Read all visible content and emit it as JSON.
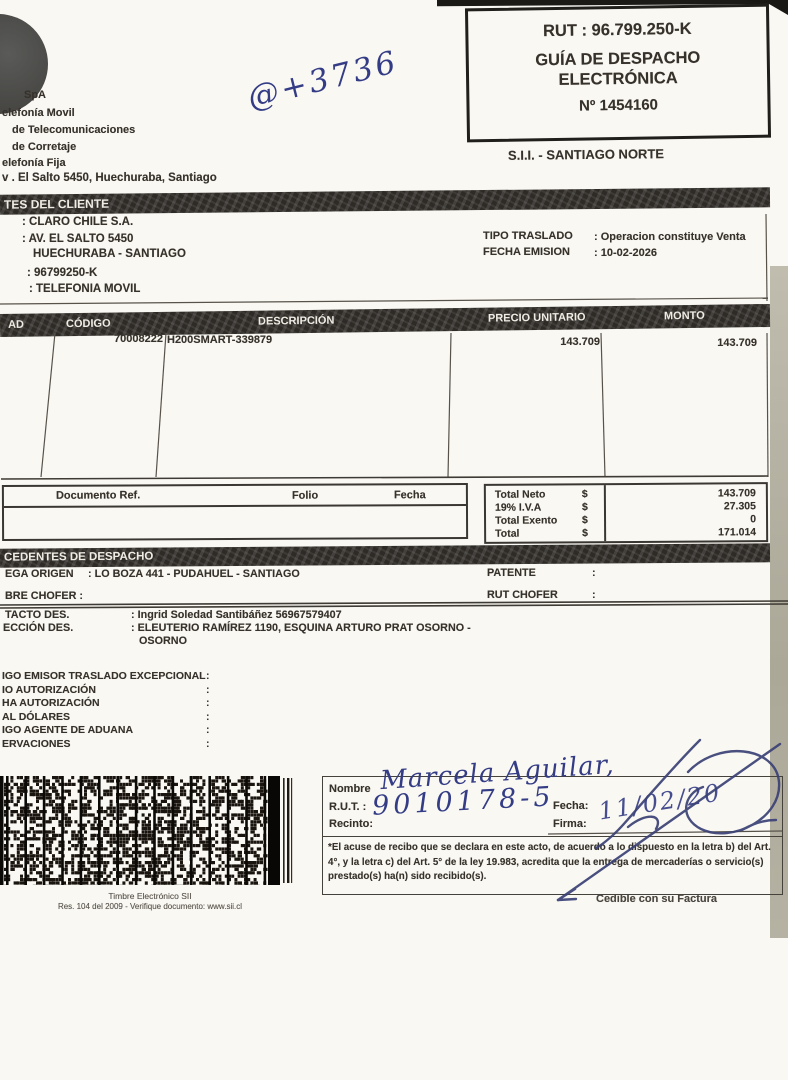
{
  "supplier": {
    "line1": "SpA",
    "line2": "elefonía Movil",
    "line3": "de Telecomunicaciones",
    "line4": "de Corretaje",
    "line5": "elefonía Fija",
    "line6": "v . El Salto 5450, Huechuraba, Santiago"
  },
  "annotations": {
    "top_note": "@+3736",
    "nombre": "Marcela Aguilar,",
    "rut": "9010178-5",
    "fecha": "11/02/20"
  },
  "rut_box": {
    "rut": "RUT : 96.799.250-K",
    "title_line1": "GUÍA DE DESPACHO",
    "title_line2": "ELECTRÓNICA",
    "folio": "Nº 1454160",
    "office": "S.I.I. - SANTIAGO NORTE"
  },
  "client": {
    "section_title": "TES DEL CLIENTE",
    "name": ": CLARO CHILE S.A.",
    "address1": ": AV. EL SALTO 5450",
    "address2": "HUECHURABA - SANTIAGO",
    "rut": ": 96799250-K",
    "giro": ": TELEFONIA MOVIL",
    "tipo_traslado_label": "TIPO TRASLADO",
    "tipo_traslado": ": Operacion constituye Venta",
    "fecha_emision_label": "FECHA EMISION",
    "fecha_emision": ": 10-02-2026"
  },
  "items": {
    "col_cantidad": "AD",
    "col_codigo": "CÓDIGO",
    "col_descripcion": "DESCRIPCIÓN",
    "col_precio": "PRECIO UNITARIO",
    "col_monto": "MONTO",
    "rows": [
      {
        "codigo": "70008222",
        "descripcion": "H200SMART-339879",
        "precio": "143.709",
        "monto": "143.709"
      }
    ]
  },
  "referencias": {
    "col_doc": "Documento Ref.",
    "col_folio": "Folio",
    "col_fecha": "Fecha"
  },
  "totales": {
    "neto_label": "Total Neto",
    "iva_label": "19% I.V.A",
    "exento_label": "Total Exento",
    "total_label": "Total",
    "currency": "$",
    "neto": "143.709",
    "iva": "27.305",
    "exento": "0",
    "total": "171.014"
  },
  "despacho": {
    "section_title": "CEDENTES DE DESPACHO",
    "origen_label": "EGA ORIGEN",
    "origen": ":  LO BOZA 441 - PUDAHUEL - SANTIAGO",
    "patente_label": "PATENTE",
    "patente": ":",
    "chofer_label": "BRE CHOFER  :",
    "rut_chofer_label": "RUT CHOFER",
    "rut_chofer": ":",
    "contacto_label": "TACTO DES.",
    "contacto": ": Ingrid Soledad Santibáñez 56967579407",
    "direccion_label": "ECCIÓN DES.",
    "direccion1": ": ELEUTERIO RAMÍREZ 1190, ESQUINA ARTURO PRAT OSORNO -",
    "direccion2": "OSORNO"
  },
  "aduana": {
    "rows": [
      {
        "label": "IGO EMISOR TRASLADO EXCEPCIONAL",
        "colon": ":"
      },
      {
        "label": "IO AUTORIZACIÓN",
        "colon": ":"
      },
      {
        "label": "HA AUTORIZACIÓN",
        "colon": ":"
      },
      {
        "label": "AL DÓLARES",
        "colon": ":"
      },
      {
        "label": "IGO AGENTE DE ADUANA",
        "colon": ":"
      },
      {
        "label": "ERVACIONES",
        "colon": ":"
      }
    ]
  },
  "timbre": {
    "line1": "Timbre Electrónico SII",
    "line2": "Res. 104 del 2009  - Verifique documento: www.sii.cl"
  },
  "recibo": {
    "nombre_label": "Nombre",
    "rut_label": "R.U.T. :",
    "recinto_label": "Recinto:",
    "fecha_label": "Fecha:",
    "firma_label": "Firma:",
    "legal": "*El acuse de recibo que se declara en este acto, de acuerdo a lo dispuesto en la letra b) del Art. 4°, y la letra c) del Art. 5° de la ley 19.983, acredita que la entrega de mercaderías o servicio(s) prestado(s) ha(n) sido recibido(s)."
  },
  "footer": {
    "cedible": "Cedible con su Factura"
  }
}
